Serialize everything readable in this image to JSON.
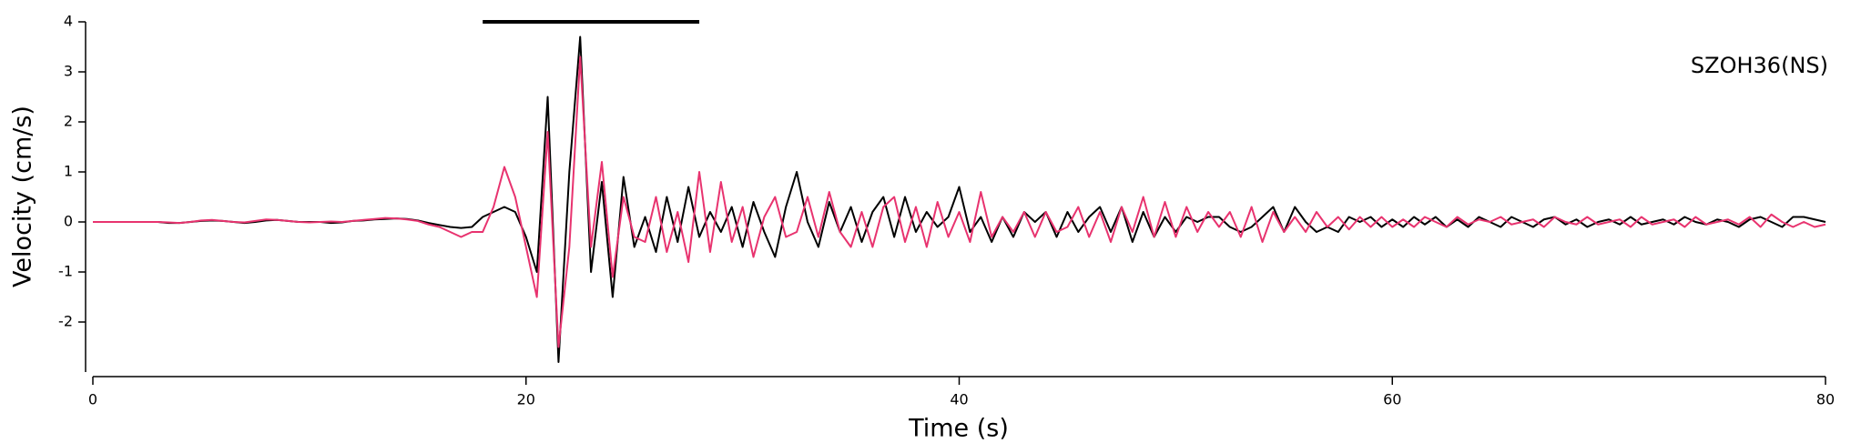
{
  "chart_data": {
    "type": "line",
    "annotation": "SZOH36(NS)",
    "x_label": "Time (s)",
    "y_label": "Velocity (cm/s)",
    "xlim": [
      0,
      80
    ],
    "ylim": [
      -3,
      4
    ],
    "xticks": [
      0,
      20,
      40,
      60,
      80
    ],
    "yticks": [
      -2,
      -1,
      0,
      1,
      2,
      3,
      4
    ],
    "bar_range": [
      18,
      28
    ],
    "bar_level": 4,
    "x": [
      0,
      0.5,
      1,
      1.5,
      2,
      2.5,
      3,
      3.5,
      4,
      4.5,
      5,
      5.5,
      6,
      6.5,
      7,
      7.5,
      8,
      8.5,
      9,
      9.5,
      10,
      10.5,
      11,
      11.5,
      12,
      12.5,
      13,
      13.5,
      14,
      14.5,
      15,
      15.5,
      16,
      16.5,
      17,
      17.5,
      18,
      18.5,
      19,
      19.5,
      20,
      20.5,
      21,
      21.5,
      22,
      22.5,
      23,
      23.5,
      24,
      24.5,
      25,
      25.5,
      26,
      26.5,
      27,
      27.5,
      28,
      28.5,
      29,
      29.5,
      30,
      30.5,
      31,
      31.5,
      32,
      32.5,
      33,
      33.5,
      34,
      34.5,
      35,
      35.5,
      36,
      36.5,
      37,
      37.5,
      38,
      38.5,
      39,
      39.5,
      40,
      40.5,
      41,
      41.5,
      42,
      42.5,
      43,
      43.5,
      44,
      44.5,
      45,
      45.5,
      46,
      46.5,
      47,
      47.5,
      48,
      48.5,
      49,
      49.5,
      50,
      50.5,
      51,
      51.5,
      52,
      52.5,
      53,
      53.5,
      54,
      54.5,
      55,
      55.5,
      56,
      56.5,
      57,
      57.5,
      58,
      58.5,
      59,
      59.5,
      60,
      60.5,
      61,
      61.5,
      62,
      62.5,
      63,
      63.5,
      64,
      64.5,
      65,
      65.5,
      66,
      66.5,
      67,
      67.5,
      68,
      68.5,
      69,
      69.5,
      70,
      70.5,
      71,
      71.5,
      72,
      72.5,
      73,
      73.5,
      74,
      74.5,
      75,
      75.5,
      76,
      76.5,
      77,
      77.5,
      78,
      78.5,
      79,
      79.5,
      80
    ],
    "series": [
      {
        "color": "#000000",
        "values": [
          0,
          0,
          0,
          0,
          0,
          0,
          0,
          -0.02,
          -0.02,
          0,
          0.02,
          0.03,
          0.02,
          0,
          -0.02,
          0,
          0.03,
          0.04,
          0.02,
          0,
          0,
          0,
          -0.02,
          -0.01,
          0.02,
          0.03,
          0.05,
          0.06,
          0.07,
          0.06,
          0.03,
          -0.02,
          -0.06,
          -0.1,
          -0.12,
          -0.1,
          0.1,
          0.2,
          0.3,
          0.2,
          -0.3,
          -1.0,
          2.5,
          -2.8,
          1.0,
          3.7,
          -1.0,
          0.8,
          -1.5,
          0.9,
          -0.5,
          0.1,
          -0.6,
          0.5,
          -0.4,
          0.7,
          -0.3,
          0.2,
          -0.2,
          0.3,
          -0.5,
          0.4,
          -0.2,
          -0.7,
          0.3,
          1.0,
          0,
          -0.5,
          0.4,
          -0.2,
          0.3,
          -0.4,
          0.2,
          0.5,
          -0.3,
          0.5,
          -0.2,
          0.2,
          -0.1,
          0.1,
          0.7,
          -0.2,
          0.1,
          -0.4,
          0.1,
          -0.3,
          0.2,
          0,
          0.2,
          -0.3,
          0.2,
          -0.2,
          0.1,
          0.3,
          -0.2,
          0.3,
          -0.4,
          0.2,
          -0.3,
          0.1,
          -0.2,
          0.1,
          0,
          0.1,
          0.1,
          -0.1,
          -0.2,
          -0.1,
          0.1,
          0.3,
          -0.2,
          0.3,
          0,
          -0.2,
          -0.1,
          -0.2,
          0.1,
          0,
          0.1,
          -0.1,
          0.05,
          -0.1,
          0.1,
          -0.05,
          0.1,
          -0.1,
          0.05,
          -0.1,
          0.1,
          0,
          -0.1,
          0.1,
          0,
          -0.1,
          0.05,
          0.1,
          -0.05,
          0.05,
          -0.1,
          0,
          0.05,
          -0.05,
          0.1,
          -0.05,
          0,
          0.05,
          -0.05,
          0.1,
          0,
          -0.05,
          0.05,
          0,
          -0.1,
          0.05,
          0.1,
          0,
          -0.1,
          0.1,
          0.1,
          0.05,
          0
        ]
      },
      {
        "color": "#e8336f",
        "values": [
          0,
          0,
          0,
          0,
          0,
          0,
          0,
          -0.01,
          -0.02,
          0,
          0.03,
          0.04,
          0.02,
          0,
          -0.01,
          0.02,
          0.05,
          0.04,
          0.02,
          0,
          -0.01,
          0,
          0.01,
          0,
          0.02,
          0.04,
          0.06,
          0.08,
          0.07,
          0.05,
          0.02,
          -0.05,
          -0.1,
          -0.2,
          -0.3,
          -0.2,
          -0.2,
          0.3,
          1.1,
          0.5,
          -0.5,
          -1.5,
          1.8,
          -2.5,
          -0.5,
          3.3,
          -0.5,
          1.2,
          -1.1,
          0.5,
          -0.3,
          -0.4,
          0.5,
          -0.6,
          0.2,
          -0.8,
          1.0,
          -0.6,
          0.8,
          -0.4,
          0.3,
          -0.7,
          0.1,
          0.5,
          -0.3,
          -0.2,
          0.5,
          -0.3,
          0.6,
          -0.2,
          -0.5,
          0.2,
          -0.5,
          0.3,
          0.5,
          -0.4,
          0.3,
          -0.5,
          0.4,
          -0.3,
          0.2,
          -0.4,
          0.6,
          -0.3,
          0.1,
          -0.2,
          0.2,
          -0.3,
          0.2,
          -0.2,
          -0.1,
          0.3,
          -0.3,
          0.2,
          -0.4,
          0.3,
          -0.2,
          0.5,
          -0.3,
          0.4,
          -0.3,
          0.3,
          -0.2,
          0.2,
          -0.1,
          0.2,
          -0.3,
          0.3,
          -0.4,
          0.2,
          -0.2,
          0.1,
          -0.2,
          0.2,
          -0.1,
          0.1,
          -0.15,
          0.1,
          -0.1,
          0.1,
          -0.1,
          0.05,
          -0.1,
          0.1,
          0,
          -0.1,
          0.1,
          -0.05,
          0.05,
          0,
          0.1,
          -0.05,
          0,
          0.05,
          -0.1,
          0.1,
          0,
          -0.05,
          0.1,
          -0.05,
          0,
          0.05,
          -0.1,
          0.1,
          -0.05,
          0,
          0.05,
          -0.1,
          0.1,
          -0.05,
          0,
          0.05,
          -0.05,
          0.1,
          -0.1,
          0.15,
          0,
          -0.1,
          0,
          -0.1,
          -0.05
        ]
      }
    ]
  }
}
